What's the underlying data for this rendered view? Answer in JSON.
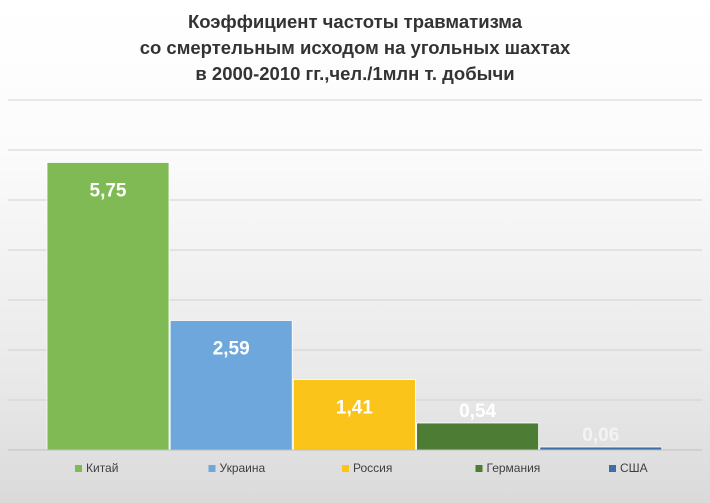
{
  "chart_data": {
    "type": "bar",
    "title_lines": [
      "Коэффициент частоты травматизма",
      "со смертельным исходом на угольных шахтах",
      "в 2000-2010 гг.,чел./1млн т. добычи"
    ],
    "categories": [
      "Китай",
      "Украина",
      "Россия",
      "Германия",
      "США"
    ],
    "values": [
      5.75,
      2.59,
      1.41,
      0.54,
      0.06
    ],
    "value_labels": [
      "5,75",
      "2,59",
      "1,41",
      "0,54",
      "0,06"
    ],
    "colors": [
      "#7fba55",
      "#6ea7dc",
      "#fbc41b",
      "#4d7c35",
      "#3e6ea8"
    ],
    "label_colors": [
      "#ffffff",
      "#ffffff",
      "#ffffff",
      "#ffffff",
      "#f3f3f3"
    ],
    "ylim": [
      0,
      7
    ],
    "grid": true,
    "legend_position": "bottom"
  }
}
